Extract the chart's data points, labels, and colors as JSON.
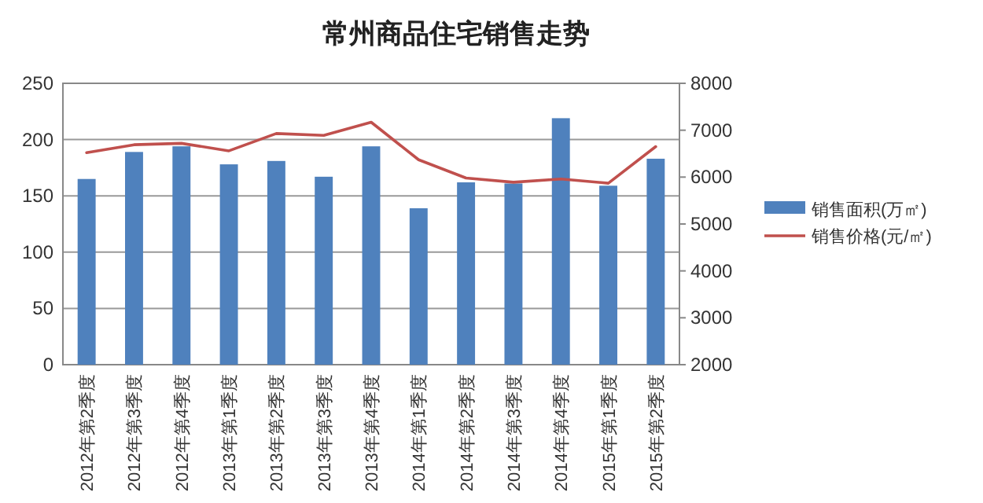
{
  "chart_data": {
    "type": "bar",
    "title": "常州商品住宅销售走势",
    "categories": [
      "2012年第2季度",
      "2012年第3季度",
      "2012年第4季度",
      "2013年第1季度",
      "2013年第2季度",
      "2013年第3季度",
      "2013年第4季度",
      "2014年第1季度",
      "2014年第2季度",
      "2014年第3季度",
      "2014年第4季度",
      "2015年第1季度",
      "2015年第2季度"
    ],
    "series": [
      {
        "name": "销售面积(万㎡)",
        "color": "#4f81bd",
        "values": [
          165,
          189,
          194,
          178,
          181,
          167,
          194,
          139,
          162,
          161,
          219,
          159,
          183
        ]
      },
      {
        "name": "销售价格(元/㎡)",
        "type": "line",
        "axis": "y2",
        "color": "#c0504d",
        "values": [
          6520,
          6690,
          6720,
          6560,
          6930,
          6890,
          7170,
          6370,
          5980,
          5890,
          5960,
          5870,
          6650
        ]
      }
    ],
    "ylim": [
      0,
      250
    ],
    "yticks": [
      0,
      50,
      100,
      150,
      200,
      250
    ],
    "y2lim": [
      2000,
      8000
    ],
    "y2ticks": [
      2000,
      3000,
      4000,
      5000,
      6000,
      7000,
      8000
    ],
    "grid": "y",
    "legend": "right",
    "marker": "none",
    "line_style": "solid"
  }
}
